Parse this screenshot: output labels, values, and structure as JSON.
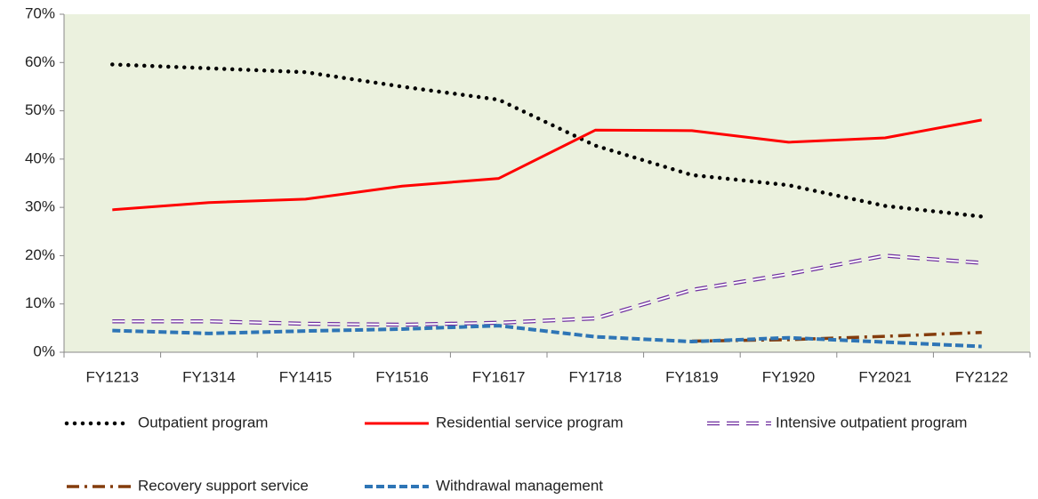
{
  "chart_data": {
    "type": "line",
    "categories": [
      "FY1213",
      "FY1314",
      "FY1415",
      "FY1516",
      "FY1617",
      "FY1718",
      "FY1819",
      "FY1920",
      "FY2021",
      "FY2122"
    ],
    "ylim": [
      0,
      70
    ],
    "yticks": [
      {
        "value": 0,
        "label": "0%"
      },
      {
        "value": 10,
        "label": "10%"
      },
      {
        "value": 20,
        "label": "20%"
      },
      {
        "value": 30,
        "label": "30%"
      },
      {
        "value": 40,
        "label": "40%"
      },
      {
        "value": 50,
        "label": "50%"
      },
      {
        "value": 60,
        "label": "60%"
      },
      {
        "value": 70,
        "label": "70%"
      }
    ],
    "grid": false,
    "background": "#ebf1de",
    "series": [
      {
        "name": "Outpatient program",
        "color": "#000000",
        "line_style": "dotted",
        "values": [
          59.6,
          58.8,
          58,
          55,
          52.3,
          42.8,
          36.7,
          34.6,
          30.3,
          28.1
        ]
      },
      {
        "name": "Residential service program",
        "color": "#ff0000",
        "line_style": "solid",
        "values": [
          29.5,
          31,
          31.7,
          34.4,
          36,
          46,
          45.9,
          43.5,
          44.4,
          48.1
        ]
      },
      {
        "name": "Intensive outpatient program",
        "color": "#7030a0",
        "line_style": "double-dash",
        "values": [
          6.4,
          6.4,
          5.9,
          5.7,
          6.1,
          7,
          12.9,
          16.2,
          20,
          18.5
        ]
      },
      {
        "name": "Recovery support service",
        "color": "#843c0c",
        "line_style": "dash-dot",
        "values": [
          null,
          null,
          null,
          null,
          null,
          null,
          2.3,
          2.6,
          3.3,
          4.1
        ]
      },
      {
        "name": "Withdrawal management",
        "color": "#2e75b6",
        "line_style": "dashed",
        "values": [
          4.5,
          3.9,
          4.4,
          4.8,
          5.5,
          3.2,
          2.2,
          3,
          2.1,
          1.2
        ]
      }
    ]
  }
}
